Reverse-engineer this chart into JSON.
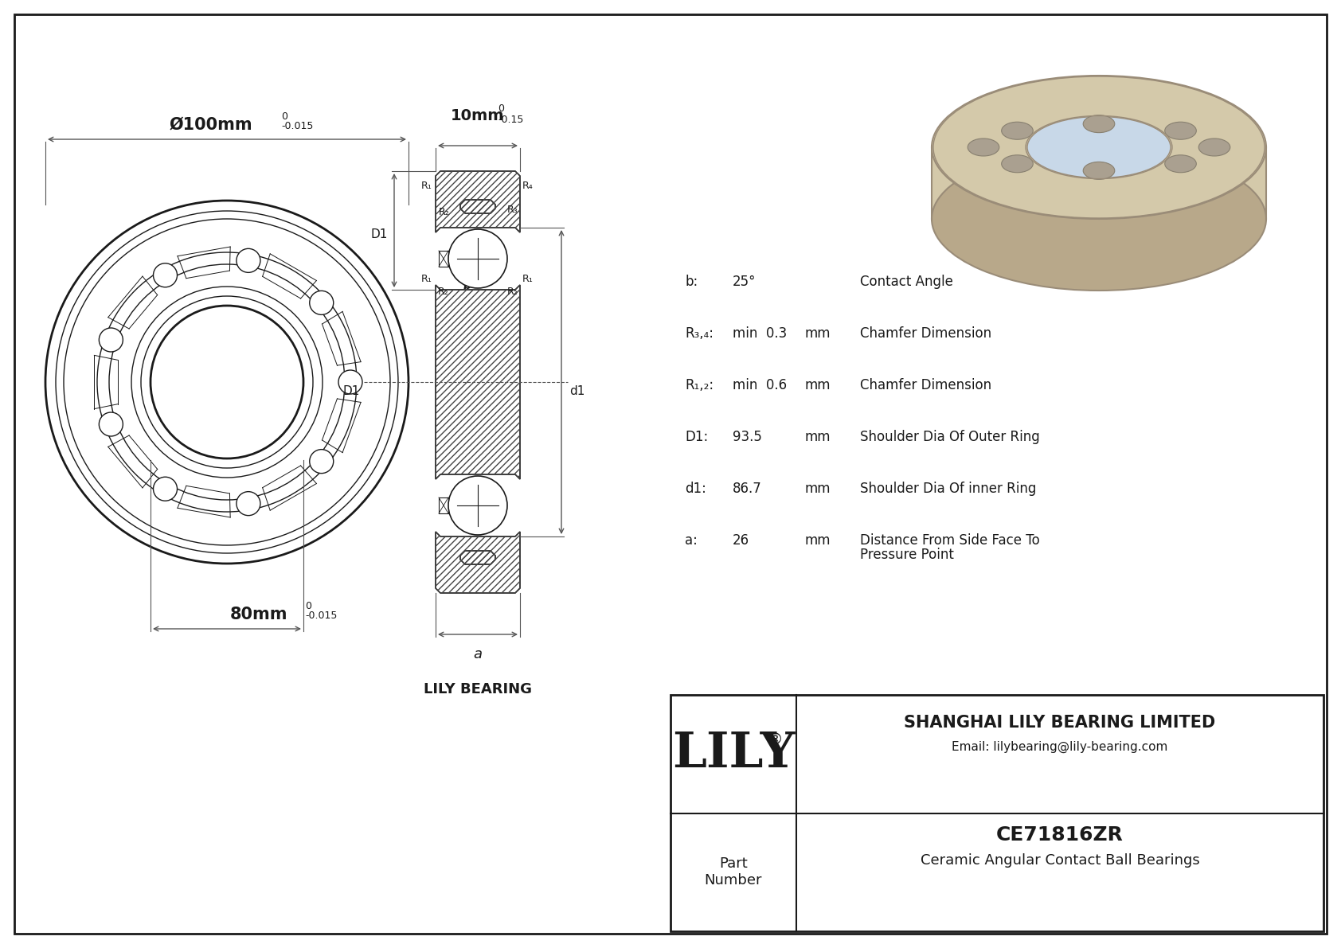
{
  "bg_color": "#ffffff",
  "line_color": "#1a1a1a",
  "dim_color": "#555555",
  "title_part": "CE71816ZR",
  "title_desc": "Ceramic Angular Contact Ball Bearings",
  "company": "SHANGHAI LILY BEARING LIMITED",
  "email": "Email: lilybearing@lily-bearing.com",
  "logo_text": "LILY",
  "logo_reg": "®",
  "part_label": "Part\nNumber",
  "lily_bearing_label": "LILY BEARING",
  "dim_outer": "Ø100mm",
  "dim_outer_tol_upper": "0",
  "dim_outer_tol_lower": "-0.015",
  "dim_inner": "80mm",
  "dim_inner_tol_upper": "0",
  "dim_inner_tol_lower": "-0.015",
  "dim_width": "10mm",
  "dim_width_tol_upper": "0",
  "dim_width_tol_lower": "-0.15",
  "dim_a_label": "a",
  "specs": [
    {
      "key": "b:",
      "val1": "25°",
      "val2": "",
      "unit": "",
      "desc": "Contact Angle"
    },
    {
      "key": "R₃,₄:",
      "val1": "min  0.3",
      "val2": "",
      "unit": "mm",
      "desc": "Chamfer Dimension"
    },
    {
      "key": "R₁,₂:",
      "val1": "min  0.6",
      "val2": "",
      "unit": "mm",
      "desc": "Chamfer Dimension"
    },
    {
      "key": "D1:",
      "val1": "93.5",
      "val2": "",
      "unit": "mm",
      "desc": "Shoulder Dia Of Outer Ring"
    },
    {
      "key": "d1:",
      "val1": "86.7",
      "val2": "",
      "unit": "mm",
      "desc": "Shoulder Dia Of inner Ring"
    },
    {
      "key": "a:",
      "val1": "26",
      "val2": "",
      "unit": "mm",
      "desc": "Distance From Side Face To\nPressure Point"
    }
  ]
}
